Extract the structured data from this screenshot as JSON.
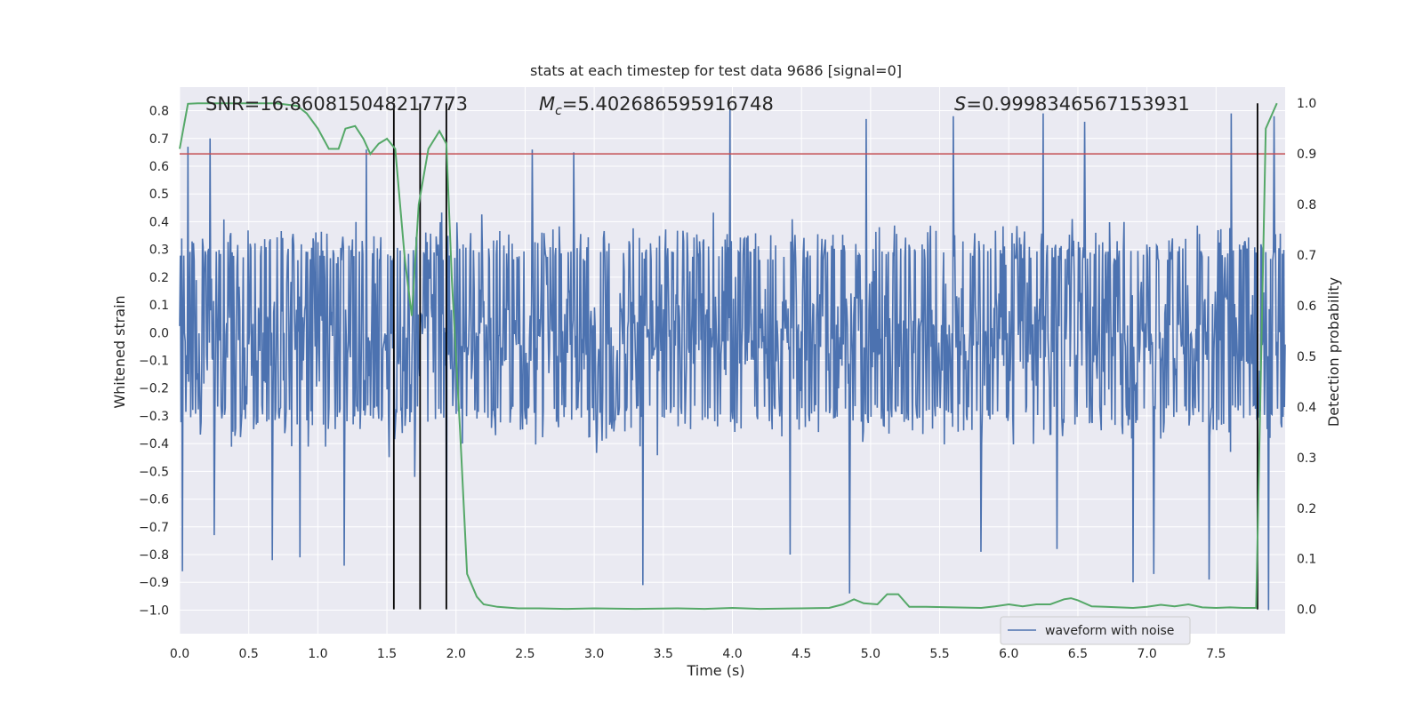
{
  "chart_data": {
    "type": "line",
    "title": "stats at each timestep for test data 9686 [signal=0]",
    "xlabel": "Time (s)",
    "ylabel": "Whitened strain",
    "y2label": "Detection probability",
    "xlim": [
      0.0,
      8.0
    ],
    "ylim": [
      -1.085,
      0.885
    ],
    "y2lim": [
      -0.048,
      1.032
    ],
    "xticks": [
      "0.0",
      "0.5",
      "1.0",
      "1.5",
      "2.0",
      "2.5",
      "3.0",
      "3.5",
      "4.0",
      "4.5",
      "5.0",
      "5.5",
      "6.0",
      "6.5",
      "7.0",
      "7.5"
    ],
    "yticks": [
      "0.8",
      "0.7",
      "0.6",
      "0.5",
      "0.4",
      "0.3",
      "0.2",
      "0.1",
      "0.0",
      "−0.1",
      "−0.2",
      "−0.3",
      "−0.4",
      "−0.5",
      "−0.6",
      "−0.7",
      "−0.8",
      "−0.9",
      "−1.0"
    ],
    "y2ticks": [
      "1.0",
      "0.9",
      "0.8",
      "0.7",
      "0.6",
      "0.5",
      "0.4",
      "0.3",
      "0.2",
      "0.1",
      "0.0"
    ],
    "annotations": {
      "snr": "SNR=16.860815048217773",
      "mc_symbol": "M",
      "mc_sub": "c",
      "mc_value": "=5.402686595916748",
      "s_symbol": "S",
      "s_value": "=0.9998346567153931"
    },
    "legend": {
      "label": "waveform with noise",
      "location": "lower-right"
    },
    "threshold_prob": 0.9,
    "vertical_markers": [
      1.55,
      1.74,
      1.93,
      7.8
    ],
    "waveform": {
      "name": "waveform with noise",
      "samples": 1600,
      "typical_amplitude": 0.26,
      "spikes": [
        [
          0.02,
          -0.86
        ],
        [
          0.06,
          0.67
        ],
        [
          0.22,
          0.7
        ],
        [
          0.25,
          -0.73
        ],
        [
          0.67,
          -0.82
        ],
        [
          0.87,
          -0.81
        ],
        [
          1.19,
          -0.84
        ],
        [
          1.35,
          0.66
        ],
        [
          1.7,
          -0.52
        ],
        [
          1.93,
          -0.82
        ],
        [
          2.55,
          0.66
        ],
        [
          2.85,
          0.65
        ],
        [
          3.35,
          -0.91
        ],
        [
          3.98,
          0.81
        ],
        [
          4.42,
          -0.8
        ],
        [
          4.85,
          -0.94
        ],
        [
          4.97,
          0.77
        ],
        [
          5.6,
          0.78
        ],
        [
          5.8,
          -0.79
        ],
        [
          6.25,
          0.79
        ],
        [
          6.35,
          -0.78
        ],
        [
          6.55,
          0.76
        ],
        [
          6.9,
          -0.9
        ],
        [
          7.05,
          -0.87
        ],
        [
          7.45,
          -0.89
        ],
        [
          7.61,
          0.79
        ],
        [
          7.88,
          -1.0
        ],
        [
          7.92,
          0.78
        ]
      ]
    },
    "detection_probability": {
      "name": "Detection probability",
      "x": [
        0.0,
        0.06,
        0.13,
        0.2,
        0.3,
        0.5,
        0.7,
        0.85,
        0.92,
        1.0,
        1.08,
        1.15,
        1.2,
        1.27,
        1.33,
        1.38,
        1.44,
        1.5,
        1.56,
        1.63,
        1.68,
        1.73,
        1.8,
        1.88,
        1.93,
        1.97,
        2.03,
        2.08,
        2.15,
        2.2,
        2.3,
        2.45,
        2.6,
        2.8,
        3.0,
        3.3,
        3.6,
        3.8,
        4.0,
        4.2,
        4.5,
        4.7,
        4.8,
        4.88,
        4.95,
        5.05,
        5.12,
        5.2,
        5.28,
        5.4,
        5.6,
        5.8,
        5.9,
        6.0,
        6.1,
        6.2,
        6.3,
        6.4,
        6.45,
        6.5,
        6.6,
        6.7,
        6.8,
        6.9,
        7.0,
        7.1,
        7.2,
        7.3,
        7.4,
        7.5,
        7.6,
        7.7,
        7.79,
        7.86,
        7.94
      ],
      "y": [
        0.91,
        0.999,
        1.0,
        1.0,
        1.0,
        1.0,
        1.0,
        0.995,
        0.98,
        0.95,
        0.91,
        0.91,
        0.95,
        0.955,
        0.93,
        0.9,
        0.92,
        0.93,
        0.91,
        0.69,
        0.58,
        0.8,
        0.91,
        0.945,
        0.92,
        0.65,
        0.35,
        0.07,
        0.025,
        0.01,
        0.005,
        0.002,
        0.002,
        0.001,
        0.002,
        0.001,
        0.002,
        0.001,
        0.003,
        0.001,
        0.002,
        0.003,
        0.01,
        0.02,
        0.012,
        0.01,
        0.03,
        0.03,
        0.005,
        0.005,
        0.004,
        0.003,
        0.006,
        0.01,
        0.006,
        0.01,
        0.01,
        0.02,
        0.022,
        0.018,
        0.006,
        0.005,
        0.004,
        0.003,
        0.005,
        0.009,
        0.006,
        0.01,
        0.004,
        0.003,
        0.004,
        0.003,
        0.003,
        0.95,
        1.0
      ]
    },
    "colors": {
      "background": "#eaeaf2",
      "grid": "#ffffff",
      "waveform": "#4c72b0",
      "probability": "#55a868",
      "threshold": "#c44e52",
      "markers": "#000000",
      "text": "#262626"
    }
  }
}
